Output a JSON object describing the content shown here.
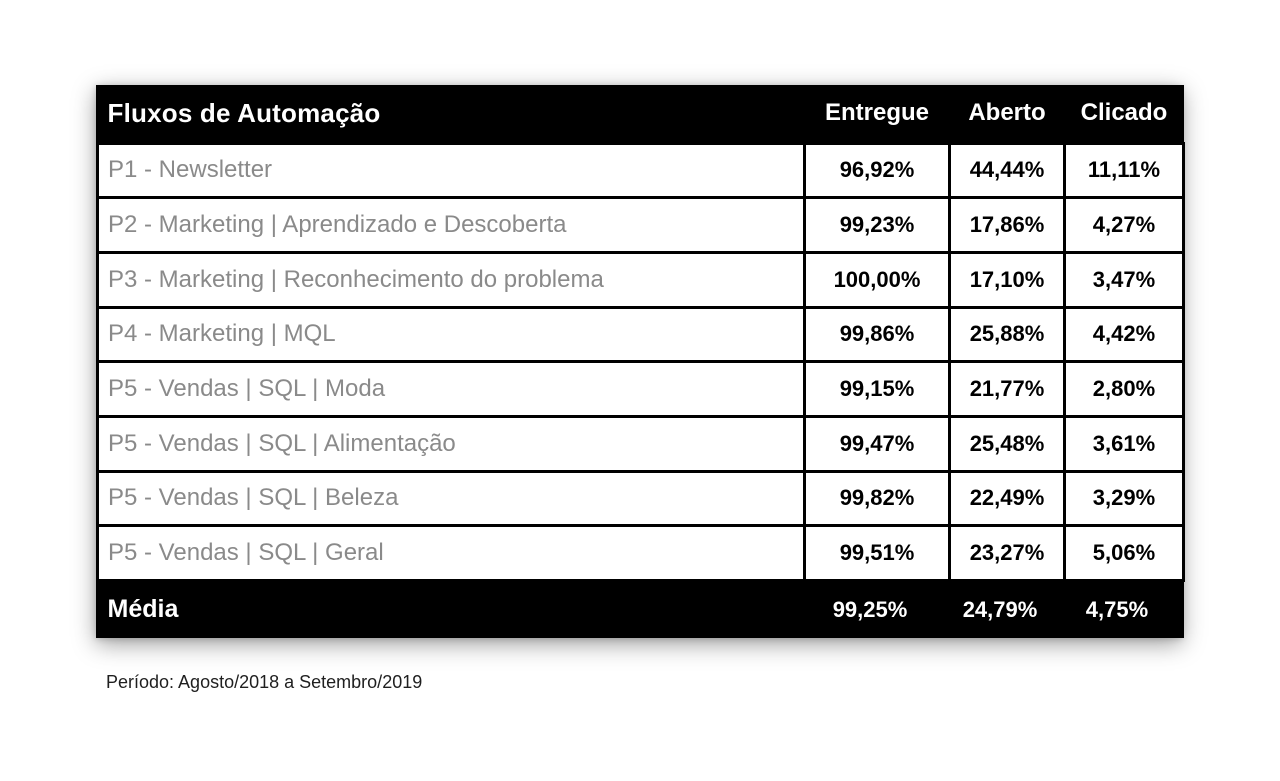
{
  "chart_data": {
    "type": "table",
    "header": {
      "title": "Fluxos de Automação",
      "columns": [
        "Entregue",
        "Aberto",
        "Clicado"
      ]
    },
    "rows": [
      {
        "label": "P1 - Newsletter",
        "values": [
          "96,92%",
          "44,44%",
          "11,11%"
        ]
      },
      {
        "label": "P2 - Marketing | Aprendizado e Descoberta",
        "values": [
          "99,23%",
          "17,86%",
          "4,27%"
        ]
      },
      {
        "label": "P3 - Marketing | Reconhecimento do problema",
        "values": [
          "100,00%",
          "17,10%",
          "3,47%"
        ]
      },
      {
        "label": "P4 - Marketing | MQL",
        "values": [
          "99,86%",
          "25,88%",
          "4,42%"
        ]
      },
      {
        "label": "P5 - Vendas | SQL | Moda",
        "values": [
          "99,15%",
          "21,77%",
          "2,80%"
        ]
      },
      {
        "label": "P5 - Vendas | SQL | Alimentação",
        "values": [
          "99,47%",
          "25,48%",
          "3,61%"
        ]
      },
      {
        "label": "P5 - Vendas | SQL | Beleza",
        "values": [
          "99,82%",
          "22,49%",
          "3,29%"
        ]
      },
      {
        "label": "P5 - Vendas | SQL | Geral",
        "values": [
          "99,51%",
          "23,27%",
          "5,06%"
        ]
      }
    ],
    "footer": {
      "label": "Média",
      "values": [
        "99,25%",
        "24,79%",
        "4,75%"
      ]
    },
    "caption": "Período: Agosto/2018 a Setembro/2019",
    "colors": {
      "header_bg": "#000000",
      "header_text": "#ffffff",
      "row_label_text": "#8a8a8a",
      "value_text": "#000000",
      "border": "#000000",
      "page_bg": "#ffffff"
    }
  }
}
